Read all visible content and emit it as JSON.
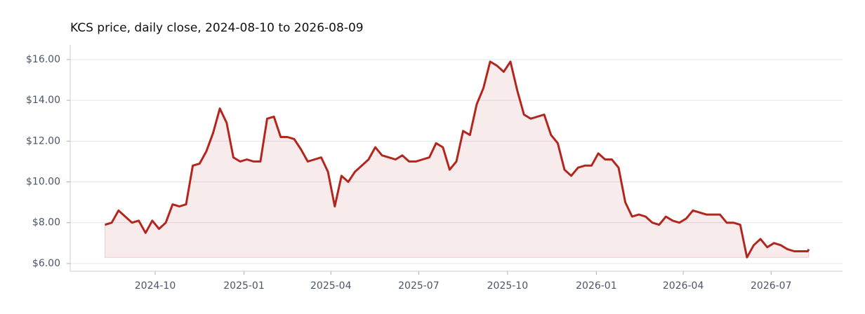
{
  "chart_data": {
    "type": "line",
    "title": "KCS price, daily close, 2024-08-10 to 2026-08-09",
    "x": [
      "2024-08-10",
      "2024-08-17",
      "2024-08-24",
      "2024-08-31",
      "2024-09-07",
      "2024-09-14",
      "2024-09-21",
      "2024-09-28",
      "2024-10-05",
      "2024-10-12",
      "2024-10-19",
      "2024-10-26",
      "2024-11-02",
      "2024-11-09",
      "2024-11-16",
      "2024-11-23",
      "2024-11-30",
      "2024-12-07",
      "2024-12-14",
      "2024-12-21",
      "2024-12-28",
      "2025-01-04",
      "2025-01-11",
      "2025-01-18",
      "2025-01-25",
      "2025-02-01",
      "2025-02-08",
      "2025-02-15",
      "2025-02-22",
      "2025-03-01",
      "2025-03-08",
      "2025-03-15",
      "2025-03-22",
      "2025-03-29",
      "2025-04-05",
      "2025-04-12",
      "2025-04-19",
      "2025-04-26",
      "2025-05-03",
      "2025-05-10",
      "2025-05-17",
      "2025-05-24",
      "2025-05-31",
      "2025-06-07",
      "2025-06-14",
      "2025-06-21",
      "2025-06-28",
      "2025-07-05",
      "2025-07-12",
      "2025-07-19",
      "2025-07-26",
      "2025-08-02",
      "2025-08-09",
      "2025-08-16",
      "2025-08-23",
      "2025-08-30",
      "2025-09-06",
      "2025-09-13",
      "2025-09-20",
      "2025-09-27",
      "2025-10-04",
      "2025-10-11",
      "2025-10-18",
      "2025-10-25",
      "2025-11-01",
      "2025-11-08",
      "2025-11-15",
      "2025-11-22",
      "2025-11-29",
      "2025-12-06",
      "2025-12-13",
      "2025-12-20",
      "2025-12-27",
      "2026-01-03",
      "2026-01-10",
      "2026-01-17",
      "2026-01-24",
      "2026-01-31",
      "2026-02-07",
      "2026-02-14",
      "2026-02-21",
      "2026-02-28",
      "2026-03-07",
      "2026-03-14",
      "2026-03-21",
      "2026-03-28",
      "2026-04-04",
      "2026-04-11",
      "2026-04-18",
      "2026-04-25",
      "2026-05-02",
      "2026-05-09",
      "2026-05-16",
      "2026-05-23",
      "2026-05-30",
      "2026-06-06",
      "2026-06-13",
      "2026-06-20",
      "2026-06-27",
      "2026-07-04",
      "2026-07-11",
      "2026-07-18",
      "2026-07-25",
      "2026-08-01",
      "2026-08-08",
      "2026-08-09"
    ],
    "series": [
      {
        "name": "KCS",
        "color": "#b3261e",
        "values": [
          7.9,
          8.0,
          8.6,
          8.3,
          8.0,
          8.1,
          7.5,
          8.1,
          7.7,
          8.0,
          8.9,
          8.8,
          8.9,
          10.8,
          10.9,
          11.5,
          12.4,
          13.6,
          12.9,
          11.2,
          11.0,
          11.1,
          11.0,
          11.0,
          13.1,
          13.2,
          12.2,
          12.2,
          12.1,
          11.6,
          11.0,
          11.1,
          11.2,
          10.5,
          8.8,
          10.3,
          10.0,
          10.5,
          10.8,
          11.1,
          11.7,
          11.3,
          11.2,
          11.1,
          11.3,
          11.0,
          11.0,
          11.1,
          11.2,
          11.9,
          11.7,
          10.6,
          11.0,
          12.5,
          12.3,
          13.8,
          14.6,
          15.9,
          15.7,
          15.4,
          15.9,
          14.5,
          13.3,
          13.1,
          13.2,
          13.3,
          12.3,
          11.9,
          10.6,
          10.3,
          10.7,
          10.8,
          10.8,
          11.4,
          11.1,
          11.1,
          10.7,
          9.0,
          8.3,
          8.4,
          8.3,
          8.0,
          7.9,
          8.3,
          8.1,
          8.0,
          8.2,
          8.6,
          8.5,
          8.4,
          8.4,
          8.4,
          8.0,
          8.0,
          7.9,
          6.3,
          6.9,
          7.2,
          6.8,
          7.0,
          6.9,
          6.7,
          6.6,
          6.6,
          6.6,
          6.7
        ]
      }
    ],
    "xlim": [
      "2024-07-05",
      "2026-09-13"
    ],
    "xticks": [
      {
        "value": "2024-10-01",
        "label": "2024-10"
      },
      {
        "value": "2025-01-01",
        "label": "2025-01"
      },
      {
        "value": "2025-04-01",
        "label": "2025-04"
      },
      {
        "value": "2025-07-01",
        "label": "2025-07"
      },
      {
        "value": "2025-10-01",
        "label": "2025-10"
      },
      {
        "value": "2026-01-01",
        "label": "2026-01"
      },
      {
        "value": "2026-04-01",
        "label": "2026-04"
      },
      {
        "value": "2026-07-01",
        "label": "2026-07"
      }
    ],
    "ylim": [
      5.62,
      16.72
    ],
    "yticks": [
      {
        "value": 6,
        "label": "$6.00"
      },
      {
        "value": 8,
        "label": "$8.00"
      },
      {
        "value": 10,
        "label": "$10.00"
      },
      {
        "value": 12,
        "label": "$12.00"
      },
      {
        "value": 14,
        "label": "$14.00"
      },
      {
        "value": 16,
        "label": "$16.00"
      }
    ],
    "grid": true
  }
}
